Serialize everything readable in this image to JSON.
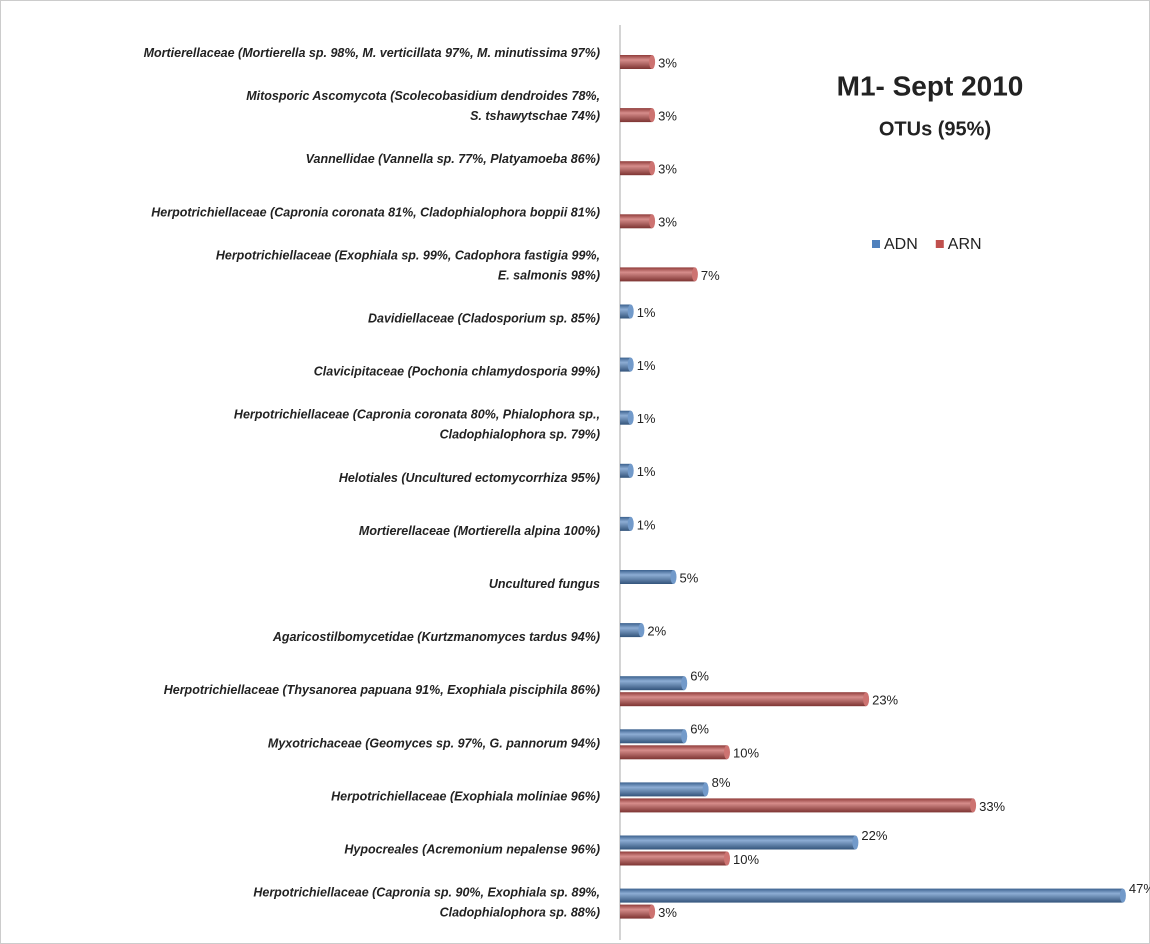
{
  "chart_data": {
    "type": "bar",
    "orientation": "horizontal",
    "title": "M1- Sept 2010",
    "subtitle": "OTUs  (95%)",
    "categories": [
      "Mortierellaceae (Mortierella sp. 98%, M. verticillata 97%, M. minutissima 97%)",
      "Mitosporic Ascomycota (Scolecobasidium dendroides 78%,\nS. tshawytschae 74%)",
      "Vannellidae (Vannella sp. 77%, Platyamoeba 86%)",
      "Herpotrichiellaceae (Capronia coronata 81%, Cladophialophora boppii 81%)",
      "Herpotrichiellaceae (Exophiala sp. 99%, Cadophora fastigia 99%,\nE. salmonis 98%)",
      "Davidiellaceae (Cladosporium sp. 85%)",
      "Clavicipitaceae (Pochonia chlamydosporia 99%)",
      "Herpotrichiellaceae (Capronia coronata 80%,  Phialophora sp.,\nCladophialophora sp. 79%)",
      "Helotiales (Uncultured ectomycorrhiza 95%)",
      "Mortierellaceae (Mortierella alpina 100%)",
      "Uncultured fungus",
      "Agaricostilbomycetidae (Kurtzmanomyces tardus 94%)",
      "Herpotrichiellaceae (Thysanorea papuana 91%, Exophiala pisciphila 86%)",
      "Myxotrichaceae (Geomyces sp. 97%, G. pannorum 94%)",
      "Herpotrichiellaceae (Exophiala moliniae 96%)",
      "Hypocreales (Acremonium nepalense 96%)",
      "Herpotrichiellaceae (Capronia sp. 90%, Exophiala sp. 89%,\nCladophialophora sp. 88%)"
    ],
    "series": [
      {
        "name": "ADN",
        "color": "#4f81bd",
        "values": [
          null,
          null,
          null,
          null,
          null,
          1,
          1,
          1,
          1,
          1,
          5,
          2,
          6,
          6,
          8,
          22,
          47
        ],
        "value_labels": [
          null,
          null,
          null,
          null,
          null,
          "1%",
          "1%",
          "1%",
          "1%",
          "1%",
          "5%",
          "2%",
          "6%",
          "6%",
          "8%",
          "22%",
          "47%"
        ]
      },
      {
        "name": "ARN",
        "color": "#c0504d",
        "values": [
          3,
          3,
          3,
          3,
          7,
          null,
          null,
          null,
          null,
          null,
          null,
          null,
          23,
          10,
          33,
          10,
          3
        ],
        "value_labels": [
          "3%",
          "3%",
          "3%",
          "3%",
          "7%",
          null,
          null,
          null,
          null,
          null,
          null,
          null,
          "23%",
          "10%",
          "33%",
          "10%",
          "3%"
        ]
      }
    ],
    "xlim": [
      0,
      50
    ],
    "legend": "top-right"
  }
}
